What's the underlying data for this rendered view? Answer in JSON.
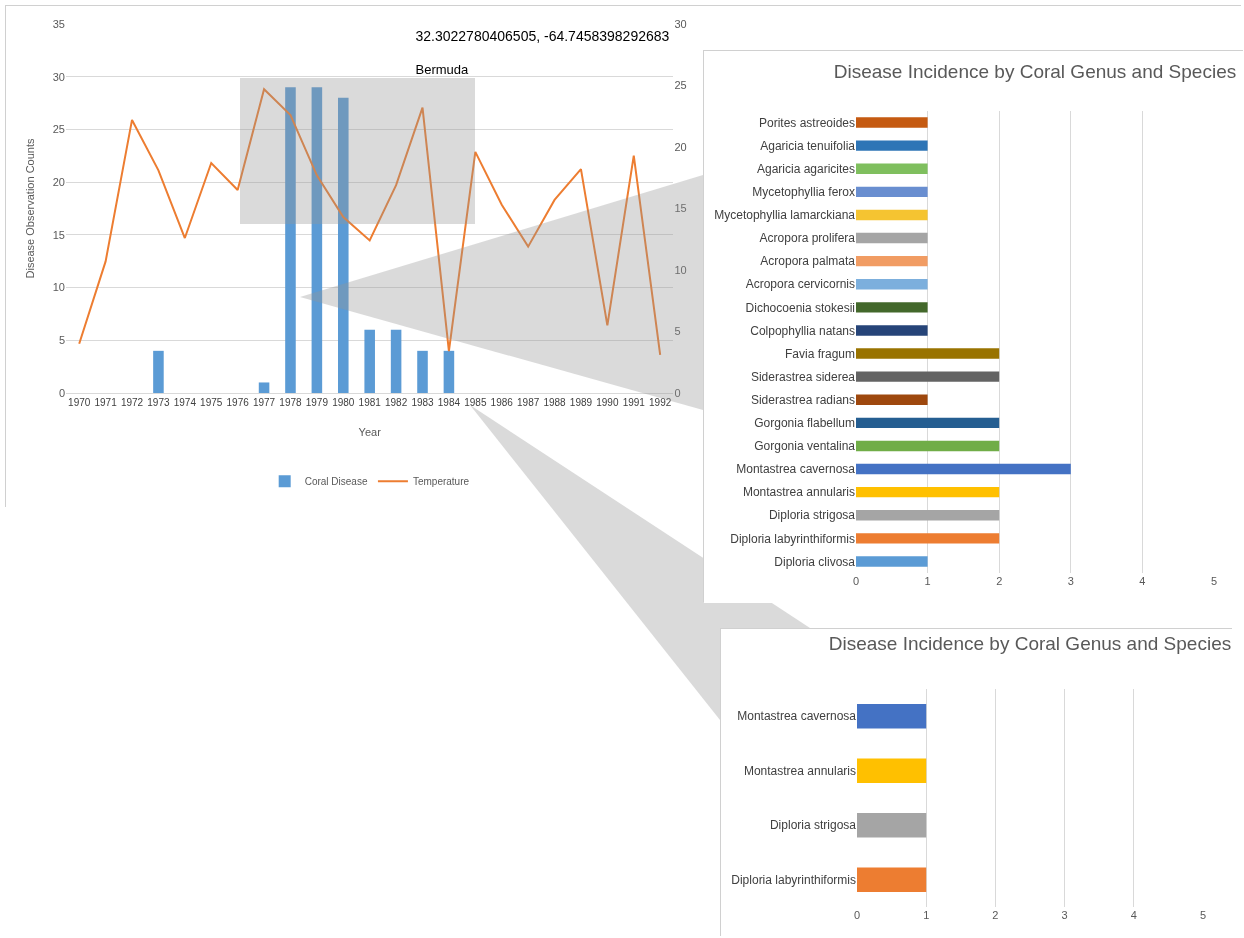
{
  "chart_data": [
    {
      "type": "bar",
      "title": "32.3022780406505, -64.7458398292683",
      "subtitle": "Bermuda",
      "xlabel": "Year",
      "ylabel": "Disease Observation Counts",
      "categories": [
        "1970",
        "1971",
        "1972",
        "1973",
        "1974",
        "1975",
        "1976",
        "1977",
        "1978",
        "1979",
        "1980",
        "1981",
        "1982",
        "1983",
        "1984",
        "1985",
        "1986",
        "1987",
        "1988",
        "1989",
        "1990",
        "1991",
        "1992"
      ],
      "series": [
        {
          "name": "Coral Disease",
          "color": "#5b9bd5",
          "values": [
            0,
            0,
            0,
            4,
            0,
            0,
            0,
            1,
            29,
            29,
            28,
            6,
            6,
            4,
            4,
            0,
            0,
            0,
            0,
            0,
            0,
            0,
            0
          ]
        },
        {
          "name": "Temperature",
          "type": "line",
          "axis": "y2",
          "color": "#ed7d31",
          "values": [
            4.0,
            10.7,
            22.2,
            18.1,
            12.6,
            18.7,
            16.5,
            24.7,
            22.6,
            17.7,
            14.3,
            12.4,
            16.9,
            23.2,
            3.4,
            19.6,
            15.3,
            11.9,
            15.7,
            18.2,
            5.5,
            19.3,
            3.1
          ]
        }
      ],
      "ylim": [
        0,
        35
      ],
      "yticks": [
        0,
        5,
        10,
        15,
        20,
        25,
        30,
        35
      ],
      "y2lim": [
        0,
        30
      ],
      "y2ticks": [
        0,
        5,
        10,
        15,
        20,
        25,
        30
      ],
      "grid": "y",
      "legend": "bottom"
    },
    {
      "type": "bar",
      "orientation": "horizontal",
      "title": "Disease Incidence by Coral Genus and Species",
      "categories": [
        "Porites astreoides",
        "Agaricia tenuifolia",
        "Agaricia agaricites",
        "Mycetophyllia ferox",
        "Mycetophyllia lamarckiana",
        "Acropora prolifera",
        "Acropora palmata",
        "Acropora cervicornis",
        "Dichocoenia stokesii",
        "Colpophyllia natans",
        "Favia fragum",
        "Siderastrea siderea",
        "Siderastrea radians",
        "Gorgonia flabellum",
        "Gorgonia ventalina",
        "Montastrea cavernosa",
        "Montastrea annularis",
        "Diploria strigosa",
        "Diploria labyrinthiformis",
        "Diploria clivosa"
      ],
      "values": [
        1,
        1,
        1,
        1,
        1,
        1,
        1,
        1,
        1,
        1,
        2,
        2,
        1,
        2,
        2,
        3,
        2,
        2,
        2,
        1
      ],
      "colors": [
        "#c55a11",
        "#2e75b6",
        "#7fbf5e",
        "#698ed0",
        "#f5c431",
        "#a5a5a5",
        "#f19c63",
        "#7cafdd",
        "#43682b",
        "#264478",
        "#997300",
        "#636363",
        "#9e480e",
        "#255e91",
        "#70ad47",
        "#4472c4",
        "#ffc000",
        "#a5a5a5",
        "#ed7d31",
        "#5b9bd5"
      ],
      "xlim": [
        0,
        5
      ],
      "xticks": [
        0,
        1,
        2,
        3,
        4,
        5
      ],
      "grid": "x"
    },
    {
      "type": "bar",
      "orientation": "horizontal",
      "title": "Disease Incidence by Coral Genus and Species",
      "categories": [
        "Montastrea cavernosa",
        "Montastrea annularis",
        "Diploria strigosa",
        "Diploria labyrinthiformis"
      ],
      "values": [
        1,
        1,
        1,
        1
      ],
      "colors": [
        "#4472c4",
        "#ffc000",
        "#a5a5a5",
        "#ed7d31"
      ],
      "xlim": [
        0,
        5
      ],
      "xticks": [
        0,
        1,
        2,
        3,
        4,
        5
      ],
      "grid": "x"
    }
  ]
}
